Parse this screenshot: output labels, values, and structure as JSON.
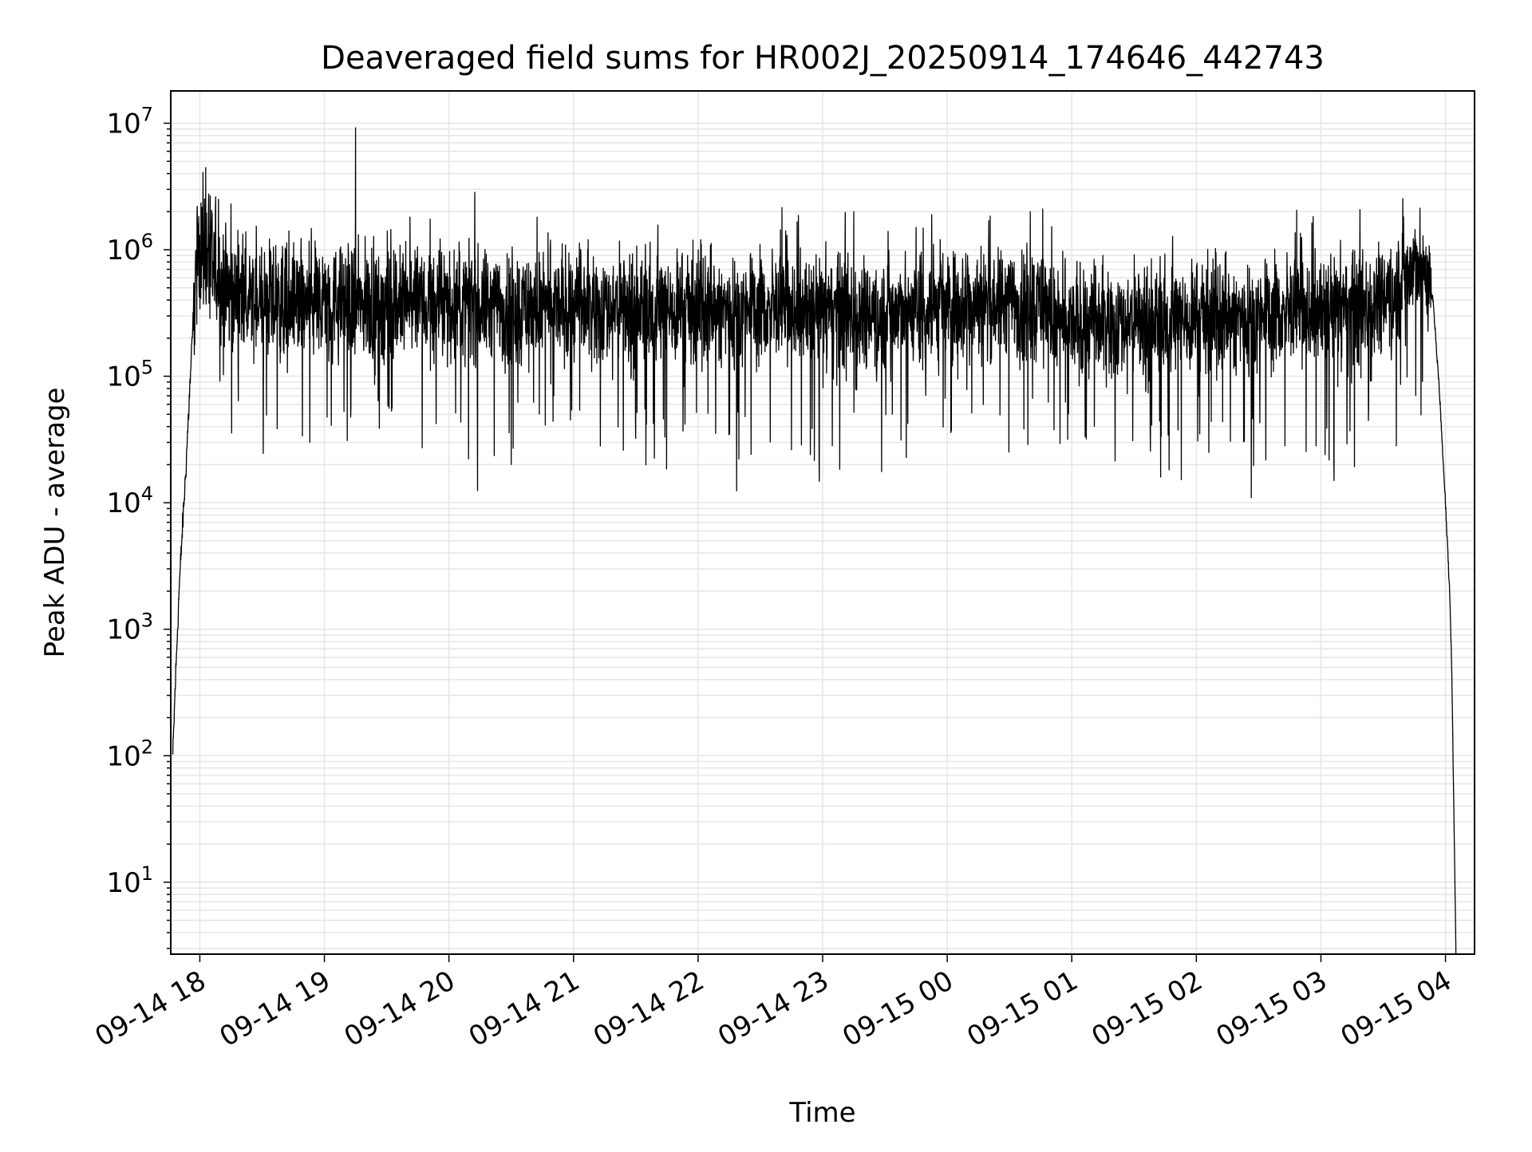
{
  "chart_data": {
    "type": "line",
    "title": "Deaveraged field sums for HR002J_20250914_174646_442743",
    "xlabel": "Time",
    "ylabel": "Peak ADU - average",
    "x_scale": "time",
    "y_scale": "log",
    "xlim": [
      "09-14 17:46",
      "09-15 04:14"
    ],
    "ylim": [
      2.7,
      18000000
    ],
    "grid": true,
    "line_color": "#000000",
    "x_ticks": [
      "09-14 18",
      "09-14 19",
      "09-14 20",
      "09-14 21",
      "09-14 22",
      "09-14 23",
      "09-15 00",
      "09-15 01",
      "09-15 02",
      "09-15 03",
      "09-15 04"
    ],
    "y_ticks": [
      {
        "base": "10",
        "exp": "1"
      },
      {
        "base": "10",
        "exp": "2"
      },
      {
        "base": "10",
        "exp": "3"
      },
      {
        "base": "10",
        "exp": "4"
      },
      {
        "base": "10",
        "exp": "5"
      },
      {
        "base": "10",
        "exp": "6"
      },
      {
        "base": "10",
        "exp": "7"
      }
    ],
    "series": [
      {
        "baseline": [
          {
            "x": "09-14 17:47",
            "y": 100
          },
          {
            "x": "09-14 17:48",
            "y": 300
          },
          {
            "x": "09-14 17:50",
            "y": 2000
          },
          {
            "x": "09-14 17:52",
            "y": 8000
          },
          {
            "x": "09-14 17:53",
            "y": 15000
          },
          {
            "x": "09-14 17:56",
            "y": 150000
          },
          {
            "x": "09-14 17:58",
            "y": 700000
          },
          {
            "x": "09-14 18:00",
            "y": 1100000
          },
          {
            "x": "09-14 18:03",
            "y": 1000000
          },
          {
            "x": "09-14 18:06",
            "y": 700000
          },
          {
            "x": "09-14 18:12",
            "y": 480000
          },
          {
            "x": "09-14 18:30",
            "y": 380000
          },
          {
            "x": "09-14 19:00",
            "y": 380000
          },
          {
            "x": "09-14 20:00",
            "y": 360000
          },
          {
            "x": "09-14 21:00",
            "y": 350000
          },
          {
            "x": "09-14 22:00",
            "y": 340000
          },
          {
            "x": "09-14 23:00",
            "y": 330000
          },
          {
            "x": "09-14 23:50",
            "y": 330000
          },
          {
            "x": "09-15 00:10",
            "y": 380000
          },
          {
            "x": "09-15 00:48",
            "y": 380000
          },
          {
            "x": "09-15 00:52",
            "y": 250000
          },
          {
            "x": "09-15 01:30",
            "y": 270000
          },
          {
            "x": "09-15 02:30",
            "y": 300000
          },
          {
            "x": "09-15 03:20",
            "y": 350000
          },
          {
            "x": "09-15 03:35",
            "y": 500000
          },
          {
            "x": "09-15 03:45",
            "y": 750000
          },
          {
            "x": "09-15 03:50",
            "y": 700000
          },
          {
            "x": "09-15 03:54",
            "y": 400000
          },
          {
            "x": "09-15 03:57",
            "y": 80000
          },
          {
            "x": "09-15 04:00",
            "y": 10000
          },
          {
            "x": "09-15 04:02",
            "y": 2000
          },
          {
            "x": "09-15 04:03",
            "y": 500
          },
          {
            "x": "09-15 04:04",
            "y": 40
          },
          {
            "x": "09-15 04:05",
            "y": 3
          }
        ],
        "spikes_up": [
          {
            "x": "09-14 18:09",
            "y": 2500000
          },
          {
            "x": "09-14 18:15",
            "y": 2300000
          },
          {
            "x": "09-14 19:15",
            "y": 9200000
          },
          {
            "x": "09-14 23:15",
            "y": 2000000
          },
          {
            "x": "09-14 23:45",
            "y": 1500000
          },
          {
            "x": "09-15 00:20",
            "y": 1700000
          },
          {
            "x": "09-15 00:40",
            "y": 2000000
          },
          {
            "x": "09-15 00:46",
            "y": 2100000
          }
        ],
        "spikes_down": [
          {
            "x": "09-14 18:53",
            "y": 30000
          },
          {
            "x": "09-14 19:11",
            "y": 31000
          },
          {
            "x": "09-14 20:30",
            "y": 20000
          },
          {
            "x": "09-14 21:24",
            "y": 26000
          },
          {
            "x": "09-14 21:44",
            "y": 33000
          },
          {
            "x": "09-15 00:02",
            "y": 37000
          },
          {
            "x": "09-15 01:07",
            "y": 32000
          },
          {
            "x": "09-15 02:06",
            "y": 25000
          },
          {
            "x": "09-15 03:14",
            "y": 37000
          }
        ]
      }
    ]
  }
}
